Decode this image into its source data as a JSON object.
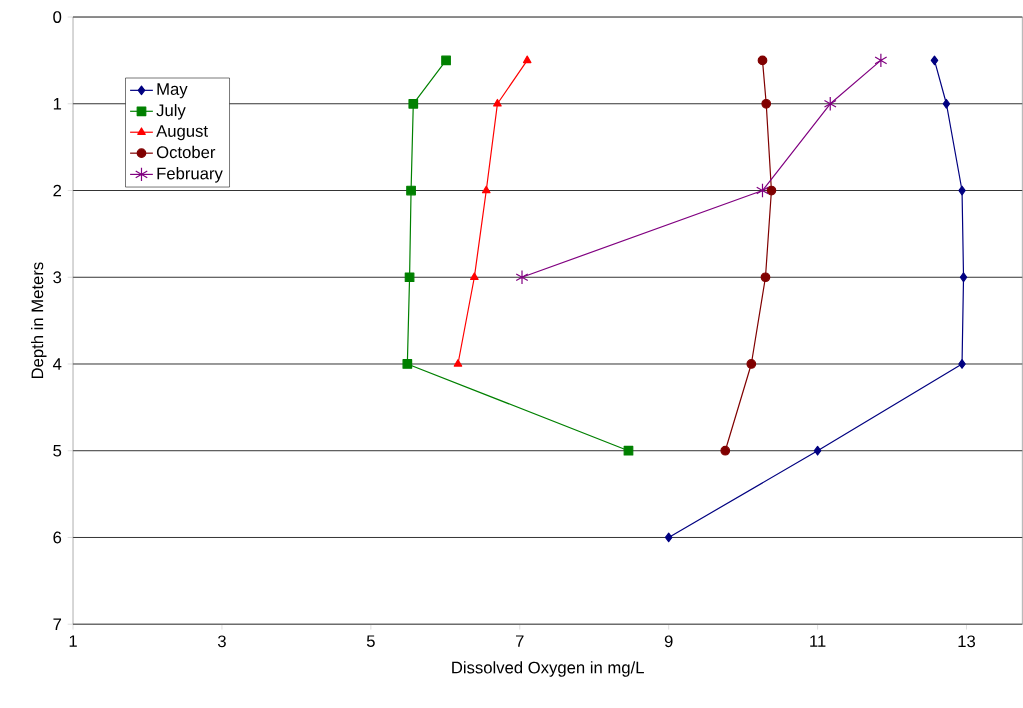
{
  "chart_data": {
    "type": "line",
    "xlabel": "Dissolved Oxygen in mg/L",
    "ylabel": "Depth in Meters",
    "xlim": [
      1,
      13.75
    ],
    "xticks": [
      1,
      3,
      5,
      7,
      9,
      11,
      13
    ],
    "ylim": [
      7,
      0
    ],
    "yticks": [
      0,
      1,
      2,
      3,
      4,
      5,
      6,
      7
    ],
    "grid": "y",
    "legend": "top left",
    "line_style": "solid",
    "series": [
      {
        "name": "May",
        "color": "#000080",
        "marker": "diamond",
        "x": [
          12.57,
          12.73,
          12.94,
          12.96,
          12.94,
          11.0,
          9.0
        ],
        "values": [
          0.5,
          1,
          2,
          3,
          4,
          5,
          6
        ]
      },
      {
        "name": "July",
        "color": "#008000",
        "marker": "square",
        "x": [
          6.01,
          5.57,
          5.54,
          5.52,
          5.49,
          8.46
        ],
        "values": [
          0.5,
          1,
          2,
          3,
          4,
          5
        ]
      },
      {
        "name": "August",
        "color": "#ff0000",
        "marker": "triangle",
        "x": [
          7.1,
          6.7,
          6.55,
          6.39,
          6.17
        ],
        "values": [
          0.5,
          1,
          2,
          3,
          4
        ]
      },
      {
        "name": "October",
        "color": "#800000",
        "marker": "circle",
        "x": [
          10.26,
          10.31,
          10.38,
          10.3,
          10.11,
          9.76
        ],
        "values": [
          0.5,
          1,
          2,
          3,
          4,
          5
        ]
      },
      {
        "name": "February",
        "color": "#800080",
        "marker": "cross",
        "x": [
          11.85,
          11.17,
          10.26,
          7.03
        ],
        "values": [
          0.5,
          1,
          2,
          3
        ]
      }
    ]
  }
}
